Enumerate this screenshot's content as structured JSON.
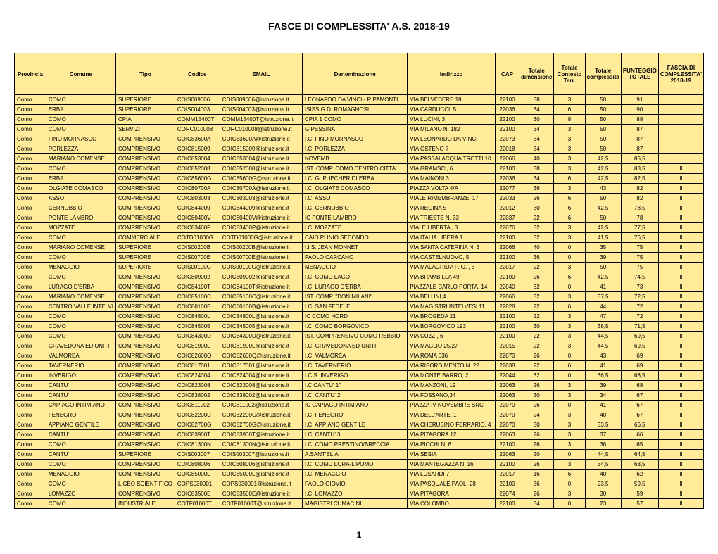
{
  "title": "FASCE DI COMPLESSITA' A.S. 2018-19",
  "page_number": "1",
  "columns": [
    "Provincia",
    "Comune",
    "Tipo",
    "Codice",
    "EMAIL",
    "Denominazione",
    "Indirizzo",
    "CAP",
    "Totale dimensione",
    "Totale Contesto Terr.",
    "Totale complessità",
    "PUNTEGGIO TOTALE",
    "FASCIA DI COMPLESSITA' 2018-19"
  ],
  "rows": [
    [
      "Como",
      "COMO",
      "SUPERIORE",
      "COIS009006",
      "COIS009006@istruzione.it",
      "LEONARDO DA VINCI - RIPAMONTI",
      "VIA     BELVEDERE 18",
      "22100",
      "38",
      "3",
      "50",
      "91",
      "I"
    ],
    [
      "Como",
      "ERBA",
      "SUPERIORE",
      "COIS004003",
      "COIS004003@istruzione.it",
      "ISISS G.D. ROMAGNOSI",
      "VIA CARDUCCI, 5",
      "22036",
      "34",
      "6",
      "50",
      "90",
      "I"
    ],
    [
      "Como",
      "COMO",
      "CPIA",
      "COMM15400T",
      "COMM15400T@istruzione.it",
      "CPIA 1 COMO",
      "VIA LUCINI, 3",
      "22100",
      "30",
      "8",
      "50",
      "88",
      "I"
    ],
    [
      "Como",
      "COMO",
      "SERVIZI",
      "CORC010008",
      "CORC010008@istruzione.it",
      "G.PESSINA",
      "VIA     MILANO  N. 182",
      "22100",
      "34",
      "3",
      "50",
      "87",
      "I"
    ],
    [
      "Como",
      "FINO MORNASCO",
      "COMPRENSIVO",
      "COIC83600A",
      "COIC83600A@istruzione.it",
      "I.C. FINO MORNASCO",
      "VIA LEONARDO DA VINCI",
      "22073",
      "34",
      "3",
      "50",
      "87",
      "I"
    ],
    [
      "Como",
      "PORLEZZA",
      "COMPRENSIVO",
      "COIC815009",
      "COIC815009@istruzione.it",
      "I.C. PORLEZZA",
      "VIA OSTENO 7",
      "22018",
      "34",
      "3",
      "50",
      "87",
      "I"
    ],
    [
      "Como",
      "MARIANO COMENSE",
      "COMPRENSIVO",
      "COIC853004",
      "COIC853004@istruzione.it",
      "NOVEMB",
      "VIA PASSALACQUA TROTTI 10",
      "22066",
      "40",
      "3",
      "42,5",
      "85,5",
      "I"
    ],
    [
      "Como",
      "COMO",
      "COMPRENSIVO",
      "COIC852008",
      "COIC852008@istruzione.it",
      "IST. COMP. COMO CENTRO CITTA'",
      "VIA GRAMSCI, 6",
      "22100",
      "38",
      "3",
      "42,5",
      "83,5",
      "II"
    ],
    [
      "Como",
      "ERBA",
      "COMPRENSIVO",
      "COIC85600G",
      "COIC85600G@istruzione.it",
      "I.C.  G. PUECHER DI ERBA",
      "VIA     MAINONI        3",
      "22036",
      "34",
      "6",
      "42,5",
      "82,5",
      "II"
    ],
    [
      "Como",
      "OLGIATE COMASCO",
      "COMPRENSIVO",
      "COIC80700A",
      "COIC80700A@istruzione.it",
      "I.C. OLGIATE COMASCO",
      "PIAZZA    VOLTA           4/A",
      "22077",
      "36",
      "3",
      "43",
      "82",
      "II"
    ],
    [
      "Como",
      "ASSO",
      "COMPRENSIVO",
      "COIC803003",
      "COIC803003@istruzione.it",
      "I.C. ASSO",
      "VIALE RIMEMBRANZE, 17",
      "22033",
      "26",
      "6",
      "50",
      "82",
      "II"
    ],
    [
      "Como",
      "CERNOBBIO",
      "COMPRENSIVO",
      "COIC844009",
      "COIC844009@istruzione.it",
      "I.C. CERNOBBIO",
      "VIA REGINA 5",
      "22012",
      "30",
      "6",
      "42,5",
      "78,5",
      "II"
    ],
    [
      "Como",
      "PONTE LAMBRO",
      "COMPRENSIVO",
      "COIC80400V",
      "COIC80400V@istruzione.it",
      "IC PONTE LAMBRO",
      "VIA TRIESTE N. 33",
      "22037",
      "22",
      "6",
      "50",
      "78",
      "II"
    ],
    [
      "Como",
      "MOZZATE",
      "COMPRENSIVO",
      "COIC83400P",
      "COIC83400P@istruzione.it",
      "I.C. MOZZATE",
      "VIALE  LIBERTA', 3",
      "22076",
      "32",
      "3",
      "42,5",
      "77,5",
      "II"
    ],
    [
      "Como",
      "COMO",
      "COMMERCIALE",
      "COTD01000G",
      "COTD01000G@istruzione.it",
      "CAIO PLINIO SECONDO",
      "VIA ITALIA LIBERA 1",
      "22100",
      "32",
      "3",
      "41,5",
      "76,5",
      "II"
    ],
    [
      "Como",
      "MARIANO COMENSE",
      "SUPERIORE",
      "COIS00200B",
      "COIS00200B@istruzione.it",
      "I.I.S. JEAN MONNET",
      "VIA SANTA CATERINA N. 3",
      "22066",
      "40",
      "0",
      "35",
      "75",
      "II"
    ],
    [
      "Como",
      "COMO",
      "SUPERIORE",
      "COIS00700E",
      "COIS00700E@istruzione.it",
      "PAOLO CARCANO",
      "VIA CASTELNUOVO, 5",
      "22100",
      "36",
      "0",
      "39",
      "75",
      "II"
    ],
    [
      "Como",
      "MENAGGIO",
      "SUPERIORE",
      "COIS00100G",
      "COIS00100G@istruzione.it",
      "MENAGGIO",
      "VIA MALAGRIDA P. G. , 3",
      "22017",
      "22",
      "3",
      "50",
      "75",
      "II"
    ],
    [
      "Como",
      "COMO",
      "COMPRENSIVO",
      "COIC809002",
      "COIC809002@istruzione.it",
      "I.C. COMO LAGO",
      "VIA     BRAMBILLA        49",
      "22100",
      "26",
      "6",
      "42,5",
      "74,5",
      "II"
    ],
    [
      "Como",
      "LURAGO D'ERBA",
      "COMPRENSIVO",
      "COIC84100T",
      "COIC84100T@istruzione.it",
      "I.C. LURAGO D'ERBA",
      "PIAZZALE CARLO PORTA, 14",
      "22040",
      "32",
      "0",
      "41",
      "73",
      "II"
    ],
    [
      "Como",
      "MARIANO COMENSE",
      "COMPRENSIVO",
      "COIC85100C",
      "COIC85100C@istruzione.it",
      "IST. COMP. \"DON MILANI\"",
      "VIA BELLINI,4",
      "22066",
      "32",
      "3",
      "37,5",
      "72,5",
      "II"
    ],
    [
      "Como",
      "CENTRO VALLE INTELVI",
      "COMPRENSIVO",
      "COIC80100B",
      "COIC80100B@istruzione.it",
      "I.C. SAN FEDELE",
      "VIA MAGISTRI INTELVESI 11",
      "22028",
      "22",
      "6",
      "44",
      "72",
      "II"
    ],
    [
      "Como",
      "COMO",
      "COMPRENSIVO",
      "COIC84800L",
      "COIC84800L@istruzione.it",
      "IC COMO NORD",
      "VIA BROGEDA 21",
      "22100",
      "22",
      "3",
      "47",
      "72",
      "II"
    ],
    [
      "Como",
      "COMO",
      "COMPRENSIVO",
      "COIC845005",
      "COIC845005@istruzione.it",
      "I.C. COMO BORGOVICO",
      "VIA BORGOVICO 193",
      "22100",
      "30",
      "3",
      "38,5",
      "71,5",
      "II"
    ],
    [
      "Como",
      "COMO",
      "COMPRENSIVO",
      "COIC84300D",
      "COIC84300D@istruzione.it",
      "IST. COMPRENSIVO COMO REBBIO",
      "VIA CUZZI, 6",
      "22100",
      "22",
      "3",
      "44,5",
      "69,5",
      "II"
    ],
    [
      "Como",
      "GRAVEDONA ED UNITI",
      "COMPRENSIVO",
      "COIC81900L",
      "COIC81900L@istruzione.it",
      "I.C. GRAVEDONA ED UNITI",
      "VIA MAGLIO 25/27",
      "22015",
      "22",
      "3",
      "44,5",
      "69,5",
      "II"
    ],
    [
      "Como",
      "VALMOREA",
      "COMPRENSIVO",
      "COIC82600Q",
      "COIC82600Q@istruzione.it",
      "I.C. VALMOREA",
      "VIA ROMA 636",
      "22070",
      "26",
      "0",
      "43",
      "69",
      "II"
    ],
    [
      "Como",
      "TAVERNERIO",
      "COMPRENSIVO",
      "COIC817001",
      "COIC817001@istruzione.it",
      "I.C. TAVERNERIO",
      "VIA RISORGIMENTO N. 22",
      "22038",
      "22",
      "6",
      "41",
      "69",
      "II"
    ],
    [
      "Como",
      "INVERIGO",
      "COMPRENSIVO",
      "COIC824004",
      "COIC824004@istruzione.it",
      "I.C.S. INVERIGO",
      "VIA MONTE BARRO, 2",
      "22044",
      "32",
      "0",
      "36,5",
      "68,5",
      "II"
    ],
    [
      "Como",
      "CANTU'",
      "COMPRENSIVO",
      "COIC823008",
      "COIC823008@istruzione.it",
      "I.C.CANTU' 1^",
      "VIA MANZONI, 19",
      "22063",
      "26",
      "3",
      "39",
      "68",
      "II"
    ],
    [
      "Como",
      "CANTU'",
      "COMPRENSIVO",
      "COIC838002",
      "COIC838002@istruzione.it",
      "I.C. CANTU' 2",
      "VIA     FOSSANO,34",
      "22063",
      "30",
      "3",
      "34",
      "67",
      "II"
    ],
    [
      "Como",
      "CAPIAGO INTIMIANO",
      "COMPRENSIVO",
      "COIC811002",
      "COIC811002@istruzione.it",
      "IC CAPIAGO INTIMIANO",
      "PIAZZA IV NOVEMBRE SNC",
      "22070",
      "26",
      "0",
      "41",
      "67",
      "II"
    ],
    [
      "Como",
      "FENEGRO",
      "COMPRENSIVO",
      "COIC82200C",
      "COIC82200C@istruzione.it",
      "I.C. FENEGRO'",
      "VIA DELL'ARTE, 1",
      "22070",
      "24",
      "3",
      "40",
      "67",
      "II"
    ],
    [
      "Como",
      "APPIANO GENTILE",
      "COMPRENSIVO",
      "COIC82700G",
      "COIC82700G@istruzione.it",
      "I.C. APPIANO GENTILE",
      "VIA CHERUBINO FERRARIO, 4",
      "22070",
      "30",
      "3",
      "33,5",
      "66,5",
      "II"
    ],
    [
      "Como",
      "CANTU'",
      "COMPRENSIVO",
      "COIC83900T",
      "COIC83900T@istruzione.it",
      "I.C. CANTU' 3",
      "VIA PITAGORA 12",
      "22063",
      "26",
      "3",
      "37",
      "66",
      "II"
    ],
    [
      "Como",
      "COMO",
      "COMPRENSIVO",
      "COIC81300N",
      "COIC81300N@istruzione.it",
      "I.C. COMO PRESTINO/BRECCIA",
      "VIA PICCHI N. 6",
      "22100",
      "26",
      "3",
      "36",
      "65",
      "II"
    ],
    [
      "Como",
      "CANTU'",
      "SUPERIORE",
      "COIS003007",
      "COIS003007@istruzione.it",
      "A.SANT'ELIA",
      "VIA SESIA",
      "22063",
      "20",
      "0",
      "44,5",
      "64,5",
      "II"
    ],
    [
      "Como",
      "COMO",
      "COMPRENSIVO",
      "COIC808006",
      "COIC808006@istruzione.it",
      "I.C. COMO LORA-LIPOMO",
      "VIA  MANTEGAZZA N. 16",
      "22100",
      "26",
      "3",
      "34,5",
      "63,5",
      "II"
    ],
    [
      "Como",
      "MENAGGIO",
      "COMPRENSIVO",
      "COIC85000L",
      "COIC85000L@istruzione.it",
      "I.C. MENAGGIO",
      "VIA LUSARDI 7",
      "22017",
      "16",
      "6",
      "40",
      "62",
      "II"
    ],
    [
      "Como",
      "COMO",
      "LICEO SCIENTIFICO",
      "COPS030001",
      "COPS030001@istruzione.it",
      "PAOLO GIOVIO",
      "VIA     PASQUALE PAOLI 28",
      "22100",
      "36",
      "0",
      "23,5",
      "59,5",
      "II"
    ],
    [
      "Como",
      "LOMAZZO",
      "COMPRENSIVO",
      "COIC83500E",
      "COIC83500E@istruzione.it",
      "I.C. LOMAZZO",
      "VIA     PITAGORA",
      "22074",
      "26",
      "3",
      "30",
      "59",
      "II"
    ],
    [
      "Como",
      "COMO",
      "INDUSTRIALE",
      "COTF01000T",
      "COTF01000T@istruzione.it",
      "MAGISTRI CUMACINI",
      "VIA COLOMBO",
      "22100",
      "34",
      "0",
      "23",
      "57",
      "II"
    ]
  ],
  "numeric_cols": [
    7,
    8,
    9,
    10,
    11,
    12
  ]
}
